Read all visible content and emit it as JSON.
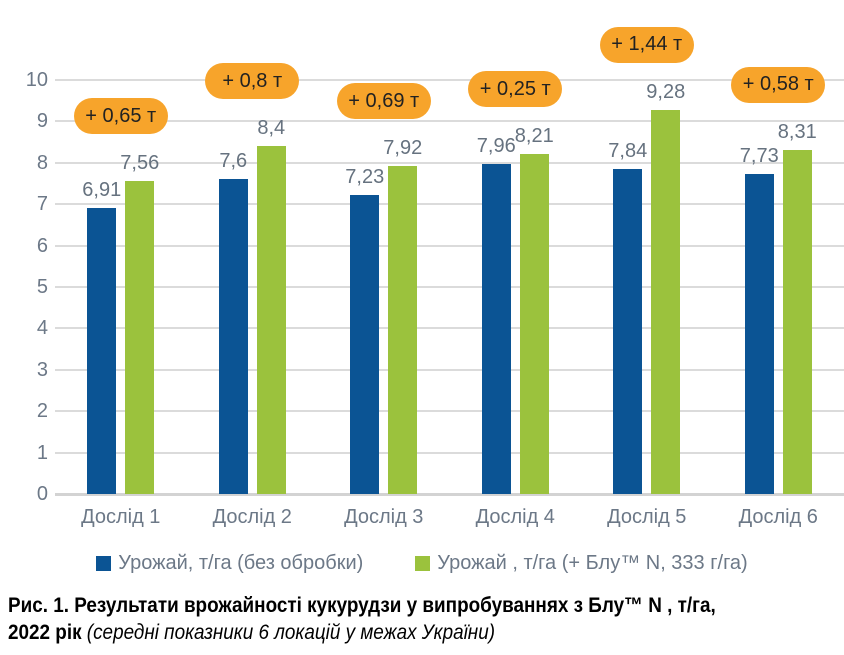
{
  "chart_data": {
    "type": "bar",
    "title": "",
    "xlabel": "",
    "ylabel": "",
    "categories": [
      "Дослід 1",
      "Дослід 2",
      "Дослід 3",
      "Дослід 4",
      "Дослід 5",
      "Дослід 6"
    ],
    "series": [
      {
        "name": "Урожай, т/га (без обробки)",
        "color": "#0b5494",
        "values": [
          6.91,
          7.6,
          7.23,
          7.96,
          7.84,
          7.73
        ],
        "value_labels": [
          "6,91",
          "7,6",
          "7,23",
          "7,96",
          "7,84",
          "7,73"
        ]
      },
      {
        "name": "Урожай , т/га (+ Блу™ N, 333 г/га)",
        "color": "#9bc23d",
        "values": [
          7.56,
          8.4,
          7.92,
          8.21,
          9.28,
          8.31
        ],
        "value_labels": [
          "7,56",
          "8,4",
          "7,92",
          "8,21",
          "9,28",
          "8,31"
        ]
      }
    ],
    "badges": {
      "labels": [
        "+ 0,65 т",
        "+ 0,8 т",
        "+ 0,69 т",
        "+ 0,25 т",
        "+ 1,44 т",
        "+ 0,58 т"
      ],
      "color": "#f7a42b",
      "text_color": "#222222"
    },
    "ylim": [
      0,
      10
    ],
    "yticks": [
      0,
      1,
      2,
      3,
      4,
      5,
      6,
      7,
      8,
      9,
      10
    ],
    "grid": true,
    "gridline_color": "#dbdbdb",
    "axis_label_color": "#6c7887",
    "legend_position": "bottom"
  },
  "caption": {
    "line1": "Рис. 1. Результати врожайності  кукурудзи у випробуваннях з Блу™ N , т/га,",
    "line2_bold": "2022 рік",
    "line2_italic": " (середні показники 6 локацій у межах України)"
  }
}
